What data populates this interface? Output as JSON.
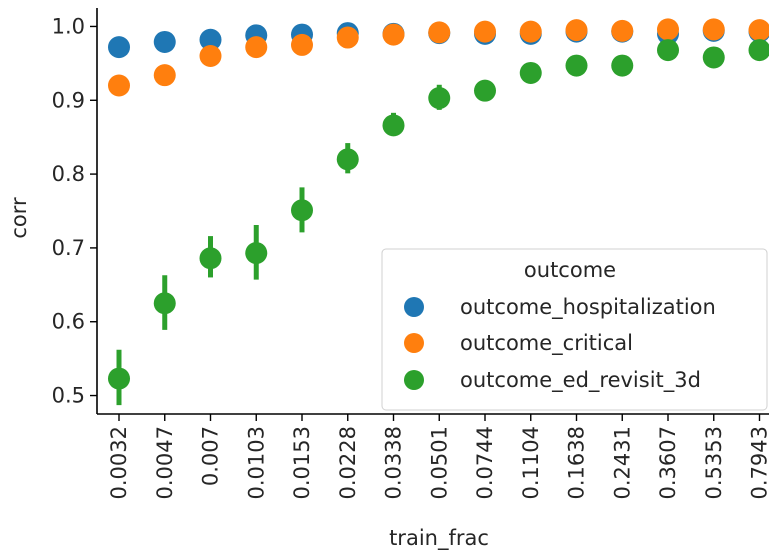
{
  "chart_data": {
    "type": "scatter",
    "title": "",
    "xlabel": "train_frac",
    "ylabel": "corr",
    "categories": [
      "0.0032",
      "0.0047",
      "0.007",
      "0.0103",
      "0.0153",
      "0.0228",
      "0.0338",
      "0.0501",
      "0.0744",
      "0.1104",
      "0.1638",
      "0.2431",
      "0.3607",
      "0.5353",
      "0.7943"
    ],
    "ylim": [
      0.475,
      1.025
    ],
    "yticks": [
      0.5,
      0.6,
      0.7,
      0.8,
      0.9,
      1.0
    ],
    "ytick_labels": [
      "0.5",
      "0.6",
      "0.7",
      "0.8",
      "0.9",
      "1.0"
    ],
    "grid": false,
    "legend": {
      "title": "outcome",
      "placement": "lower-right"
    },
    "series": [
      {
        "name": "outcome_hospitalization",
        "color": "#1f77b4",
        "values": [
          0.972,
          0.979,
          0.982,
          0.988,
          0.989,
          0.991,
          0.99,
          0.991,
          0.99,
          0.99,
          0.993,
          0.993,
          0.99,
          0.994,
          0.993
        ],
        "err_low": [
          0.972,
          0.979,
          0.982,
          0.988,
          0.989,
          0.991,
          0.99,
          0.991,
          0.99,
          0.99,
          0.993,
          0.993,
          0.99,
          0.994,
          0.993
        ],
        "err_high": [
          0.972,
          0.979,
          0.982,
          0.988,
          0.989,
          0.991,
          0.99,
          0.991,
          0.99,
          0.99,
          0.993,
          0.993,
          0.99,
          0.994,
          0.993
        ]
      },
      {
        "name": "outcome_critical",
        "color": "#ff7f0e",
        "values": [
          0.92,
          0.934,
          0.96,
          0.972,
          0.975,
          0.985,
          0.989,
          0.992,
          0.993,
          0.993,
          0.995,
          0.994,
          0.996,
          0.996,
          0.995
        ],
        "err_low": [
          0.92,
          0.934,
          0.96,
          0.972,
          0.975,
          0.985,
          0.989,
          0.992,
          0.993,
          0.993,
          0.995,
          0.994,
          0.996,
          0.996,
          0.995
        ],
        "err_high": [
          0.92,
          0.934,
          0.96,
          0.972,
          0.975,
          0.985,
          0.989,
          0.992,
          0.993,
          0.993,
          0.995,
          0.994,
          0.996,
          0.996,
          0.995
        ]
      },
      {
        "name": "outcome_ed_revisit_3d",
        "color": "#2ca02c",
        "values": [
          0.523,
          0.625,
          0.686,
          0.693,
          0.751,
          0.82,
          0.866,
          0.903,
          0.913,
          0.937,
          0.947,
          0.947,
          0.968,
          0.958,
          0.968
        ],
        "err_low": [
          0.487,
          0.589,
          0.66,
          0.657,
          0.721,
          0.801,
          0.852,
          0.887,
          0.913,
          0.937,
          0.947,
          0.947,
          0.968,
          0.958,
          0.968
        ],
        "err_high": [
          0.562,
          0.663,
          0.716,
          0.731,
          0.782,
          0.842,
          0.883,
          0.921,
          0.913,
          0.937,
          0.947,
          0.947,
          0.968,
          0.958,
          0.968
        ]
      }
    ]
  }
}
